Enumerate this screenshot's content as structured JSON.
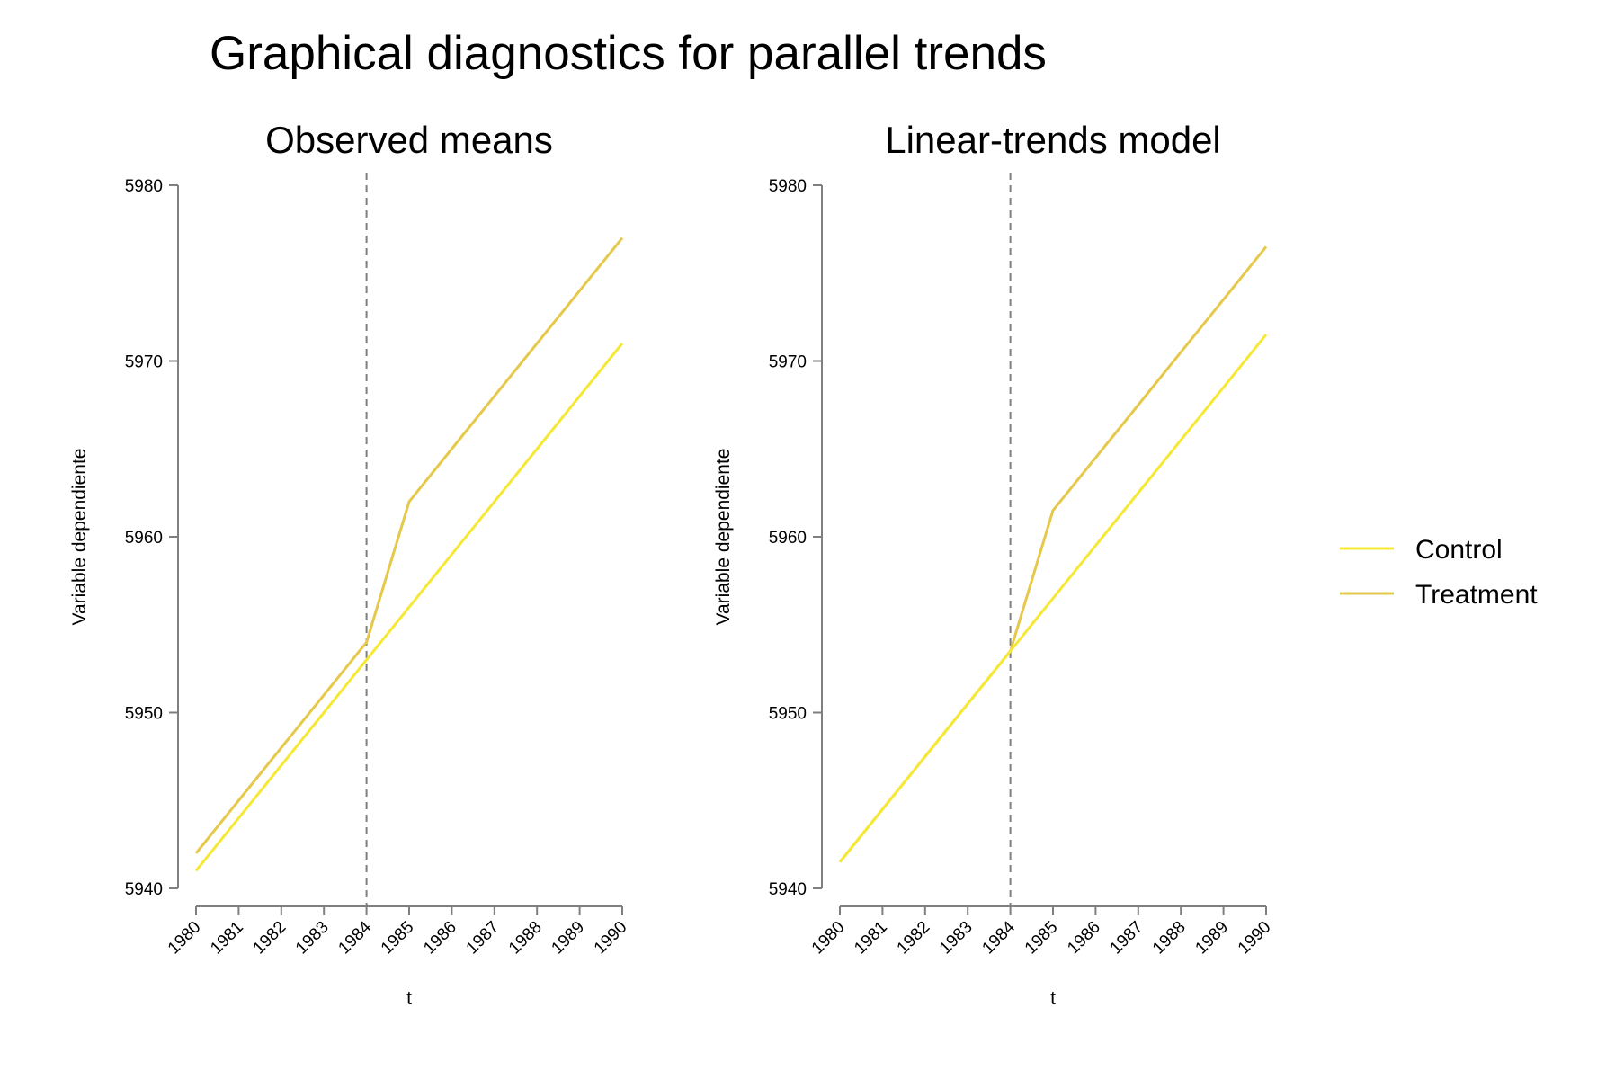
{
  "figure": {
    "title": "Graphical diagnostics for parallel trends",
    "legend_position": "right"
  },
  "legend": {
    "items": [
      {
        "label": "Control",
        "color": "#f6e834"
      },
      {
        "label": "Treatment",
        "color": "#e6c84a"
      }
    ]
  },
  "chart_data": [
    {
      "type": "line",
      "title": "Observed means",
      "xlabel": "t",
      "ylabel": "Variable dependiente",
      "x": [
        1980,
        1981,
        1982,
        1983,
        1984,
        1985,
        1986,
        1987,
        1988,
        1989,
        1990
      ],
      "x_tick_labels": [
        "1980",
        "1981",
        "1982",
        "1983",
        "1984",
        "1985",
        "1986",
        "1987",
        "1988",
        "1989",
        "1990"
      ],
      "ylim": [
        5940,
        5980
      ],
      "y_ticks": [
        5940,
        5950,
        5960,
        5970,
        5980
      ],
      "y_tick_labels": [
        "5940",
        "5950",
        "5960",
        "5970",
        "5980"
      ],
      "reference_line_x": 1984,
      "grid": false,
      "series": [
        {
          "name": "Control",
          "color": "#f6e834",
          "values": [
            5941,
            5944,
            5947,
            5950,
            5953,
            5956,
            5959,
            5962,
            5965,
            5968,
            5971
          ]
        },
        {
          "name": "Treatment",
          "color": "#e6c84a",
          "values": [
            5942,
            5945,
            5948,
            5951,
            5954,
            5962,
            5965,
            5968,
            5971,
            5974,
            5977
          ]
        }
      ]
    },
    {
      "type": "line",
      "title": "Linear-trends model",
      "xlabel": "t",
      "ylabel": "Variable dependiente",
      "x": [
        1980,
        1981,
        1982,
        1983,
        1984,
        1985,
        1986,
        1987,
        1988,
        1989,
        1990
      ],
      "x_tick_labels": [
        "1980",
        "1981",
        "1982",
        "1983",
        "1984",
        "1985",
        "1986",
        "1987",
        "1988",
        "1989",
        "1990"
      ],
      "ylim": [
        5940,
        5980
      ],
      "y_ticks": [
        5940,
        5950,
        5960,
        5970,
        5980
      ],
      "y_tick_labels": [
        "5940",
        "5950",
        "5960",
        "5970",
        "5980"
      ],
      "reference_line_x": 1984,
      "grid": false,
      "series": [
        {
          "name": "Control",
          "color": "#f6e834",
          "values": [
            5941.5,
            5944.5,
            5947.5,
            5950.5,
            5953.5,
            5956.5,
            5959.5,
            5962.5,
            5965.5,
            5968.5,
            5971.5
          ]
        },
        {
          "name": "Treatment",
          "color": "#e6c84a",
          "values": [
            5941.5,
            5944.5,
            5947.5,
            5950.5,
            5953.5,
            5961.5,
            5964.5,
            5967.5,
            5970.5,
            5973.5,
            5976.5
          ]
        }
      ]
    }
  ]
}
